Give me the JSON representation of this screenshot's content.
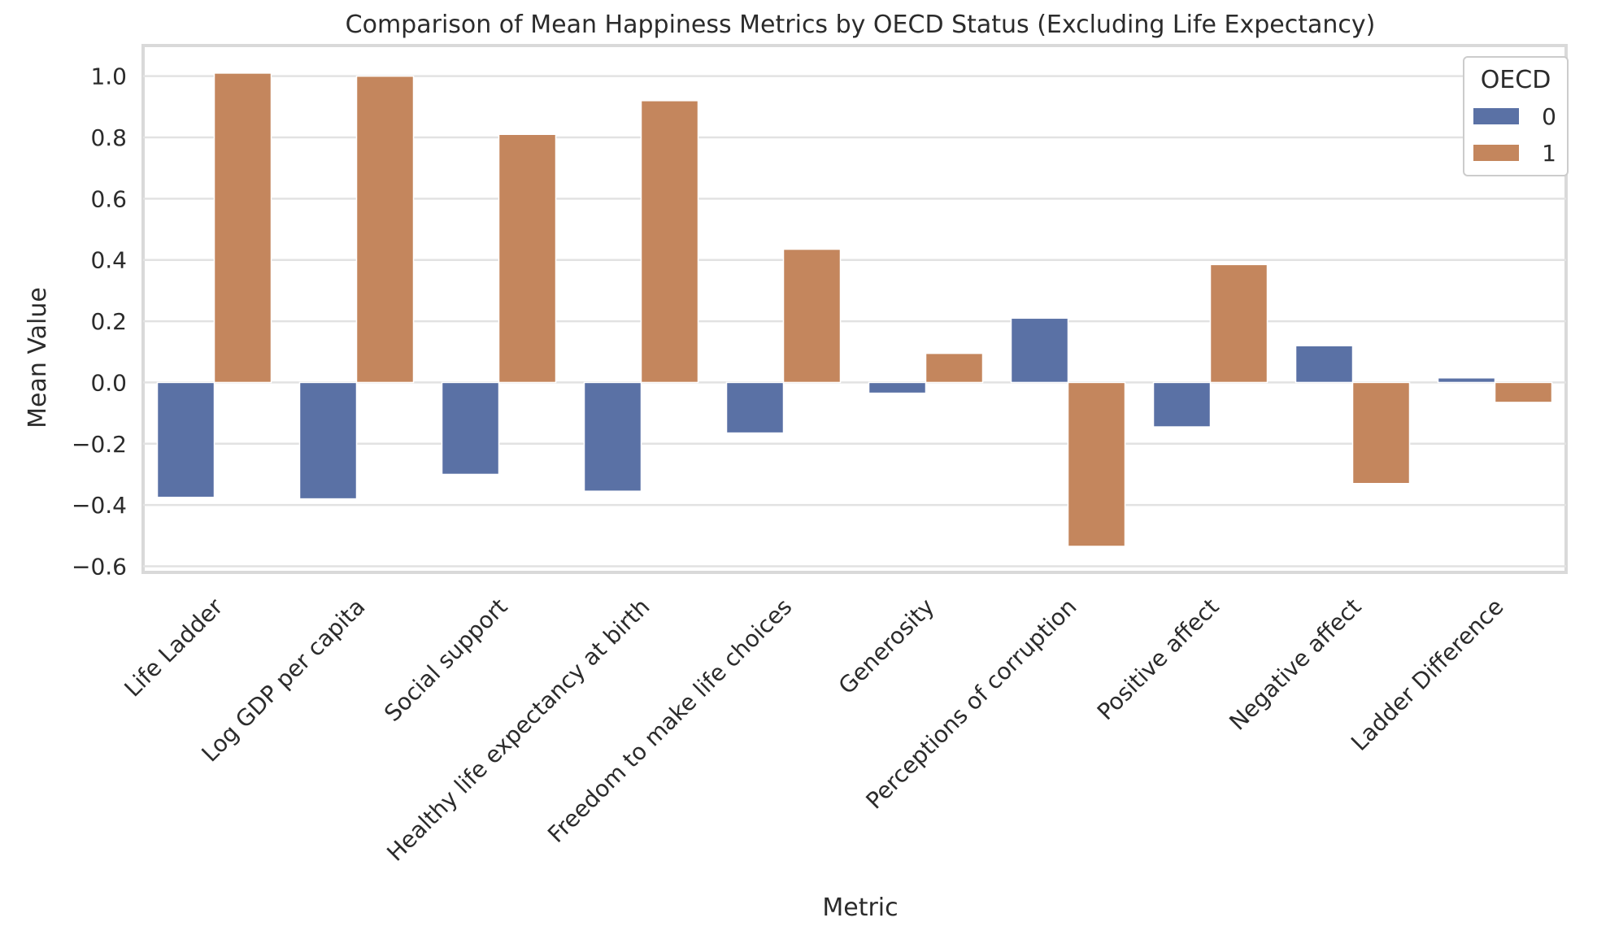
{
  "chart_data": {
    "type": "bar",
    "title": "Comparison of Mean Happiness Metrics by OECD Status (Excluding Life Expectancy)",
    "xlabel": "Metric",
    "ylabel": "Mean Value",
    "ylim": [
      -0.62,
      1.1
    ],
    "yticks": [
      -0.6,
      -0.4,
      -0.2,
      0.0,
      0.2,
      0.4,
      0.6,
      0.8,
      1.0
    ],
    "ytick_labels": [
      "−0.6",
      "−0.4",
      "−0.2",
      "0.0",
      "0.2",
      "0.4",
      "0.6",
      "0.8",
      "1.0"
    ],
    "grid": true,
    "legend": {
      "title": "OECD",
      "position": "top-right"
    },
    "categories": [
      "Life Ladder",
      "Log GDP per capita",
      "Social support",
      "Healthy life expectancy at birth",
      "Freedom to make life choices",
      "Generosity",
      "Perceptions of corruption",
      "Positive affect",
      "Negative affect",
      "Ladder Difference"
    ],
    "series": [
      {
        "name": "0",
        "color": "#5a71a5",
        "values": [
          -0.375,
          -0.38,
          -0.3,
          -0.355,
          -0.165,
          -0.035,
          0.21,
          -0.145,
          0.12,
          0.015
        ]
      },
      {
        "name": "1",
        "color": "#c4865d",
        "values": [
          1.01,
          1.0,
          0.81,
          0.92,
          0.435,
          0.095,
          -0.535,
          0.385,
          -0.33,
          -0.065
        ]
      }
    ]
  }
}
